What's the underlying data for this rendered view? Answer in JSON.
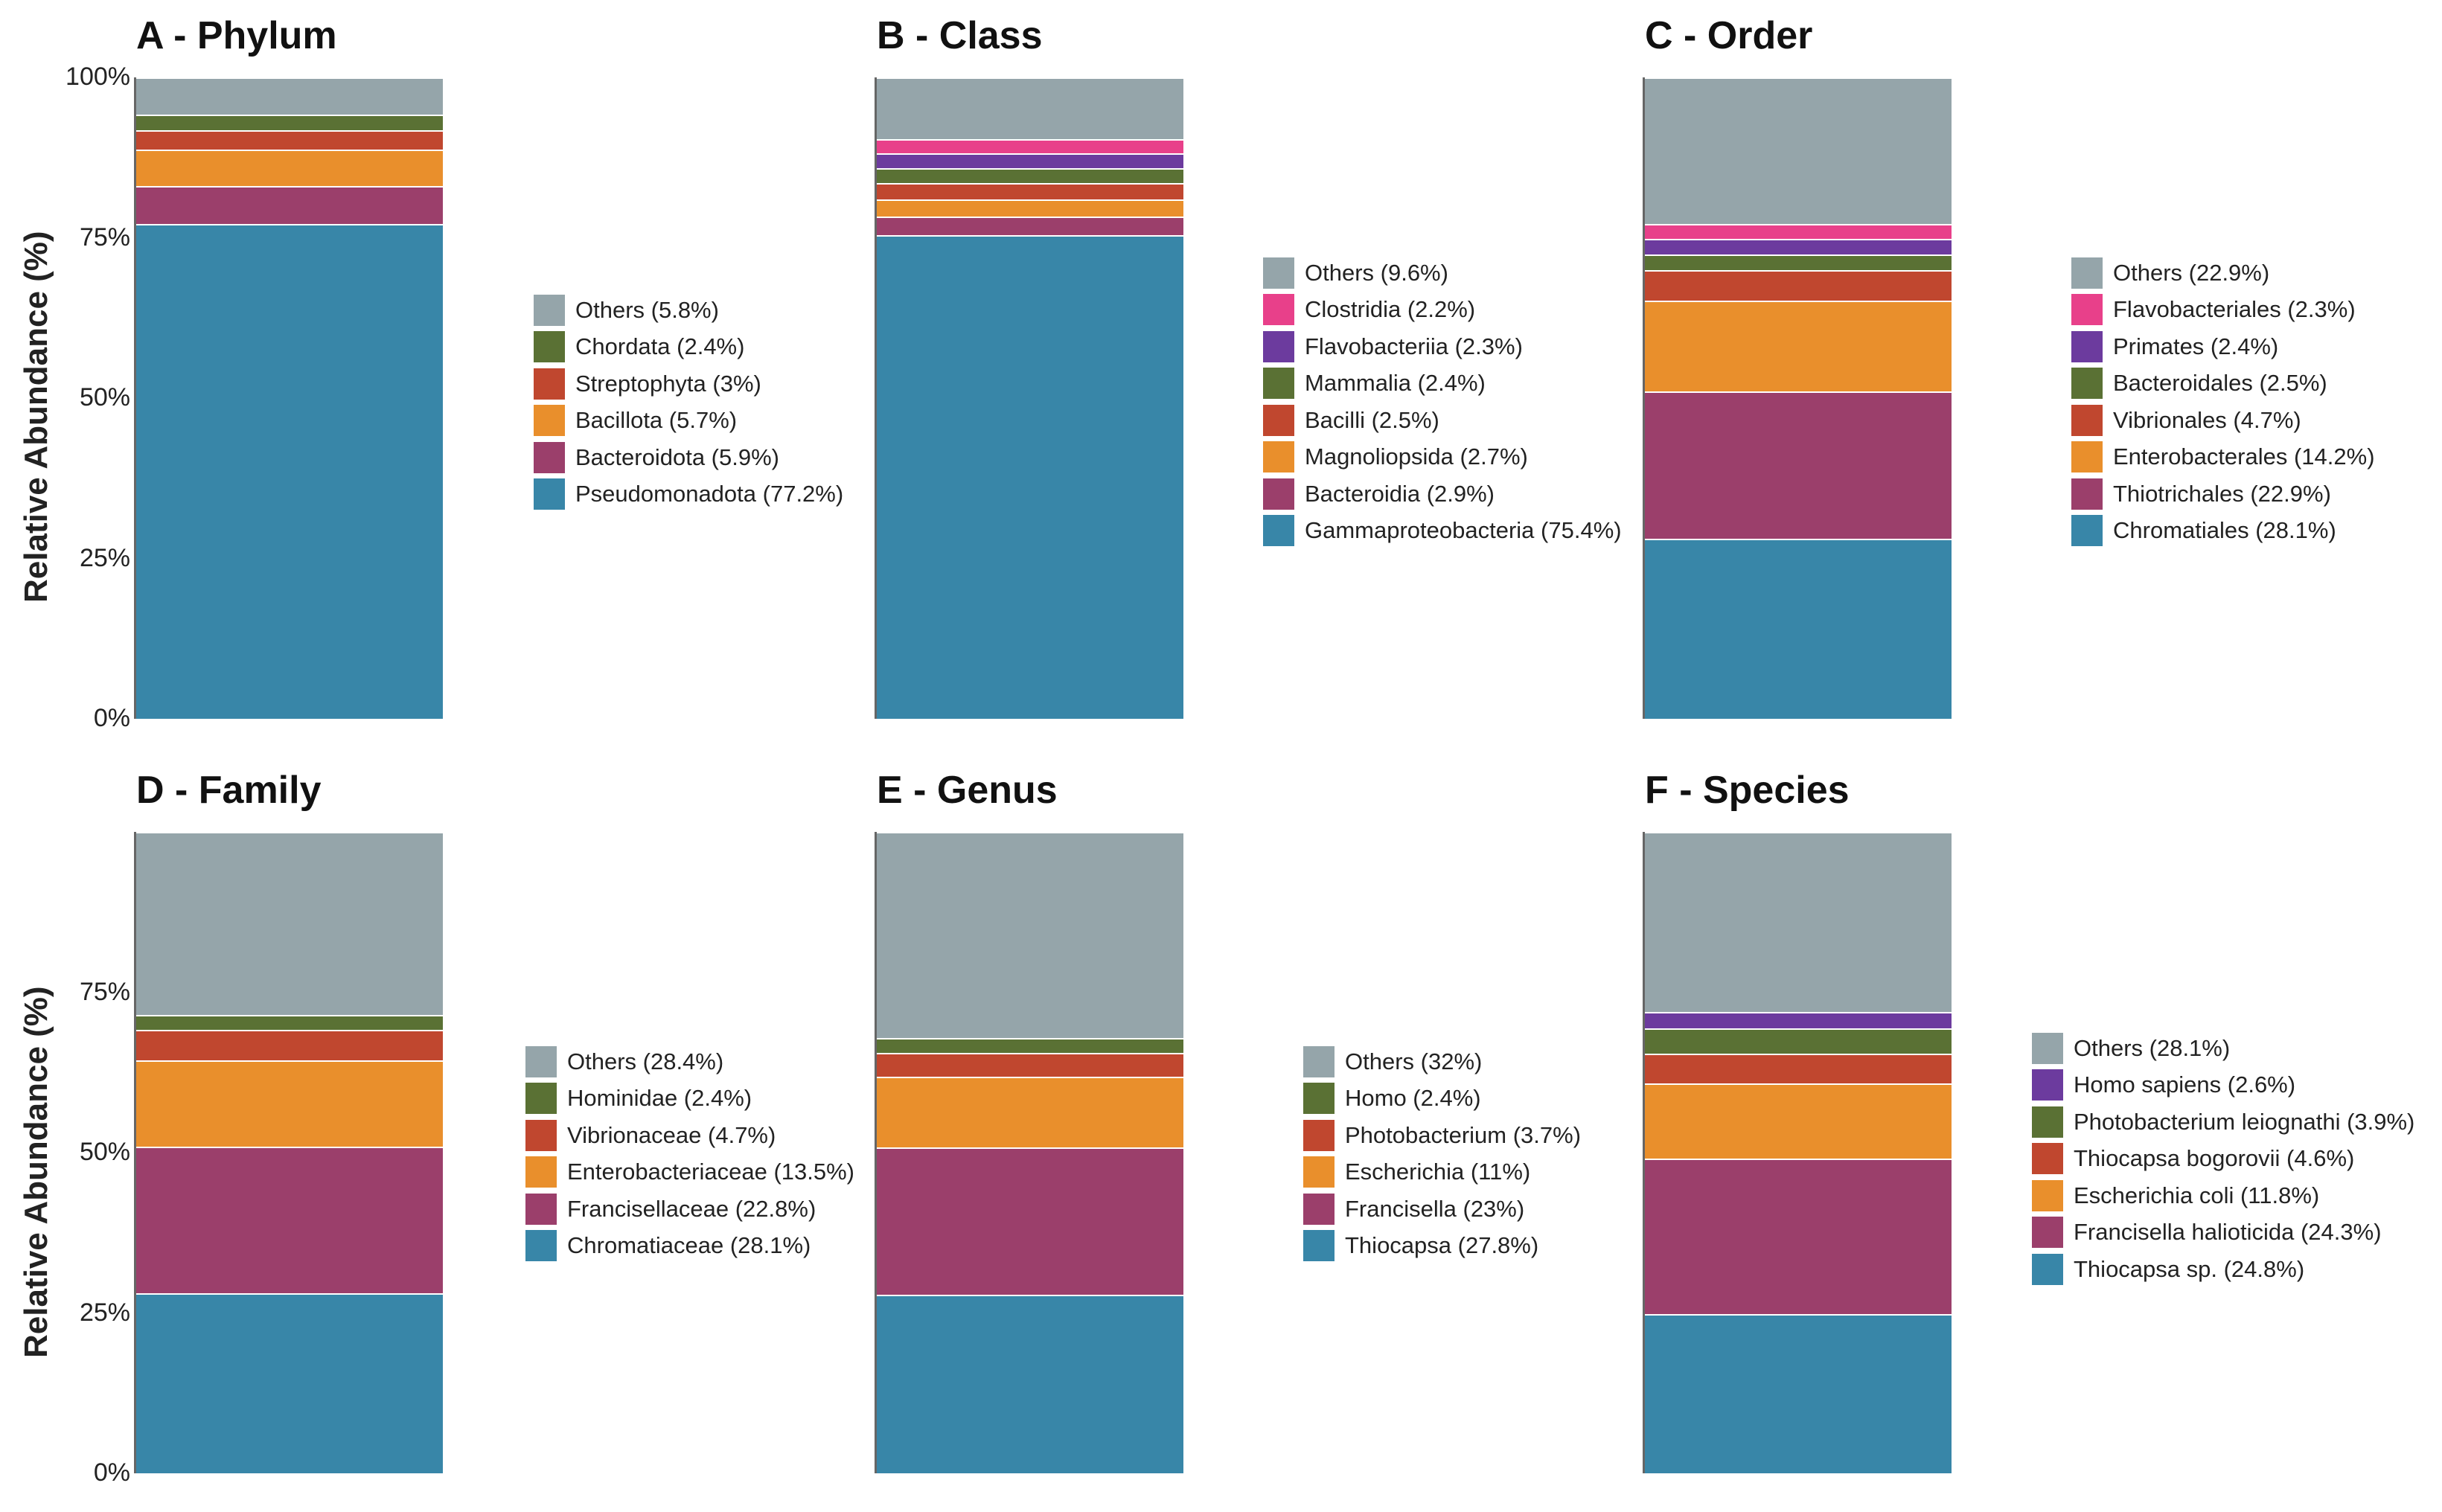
{
  "y_axis_label": "Relative Abundance (%)",
  "colors": {
    "Others": "#95a5aa",
    "pink": "#e8408a",
    "purple": "#6c3b9e",
    "green": "#5a7134",
    "red": "#c0472f",
    "orange": "#e98f2c",
    "magenta": "#9b3f6b",
    "blue": "#3886a8"
  },
  "chart_data": [
    {
      "type": "bar",
      "stacked": true,
      "title": "A - Phylum",
      "ylabel": "Relative Abundance (%)",
      "y_ticks": [
        "0%",
        "25%",
        "50%",
        "75%",
        "100%"
      ],
      "ylim": [
        0,
        100
      ],
      "series": [
        {
          "name": "Pseudomonadota (77.2%)",
          "value": 77.2,
          "color": "#3886a8"
        },
        {
          "name": "Bacteroidota (5.9%)",
          "value": 5.9,
          "color": "#9b3f6b"
        },
        {
          "name": "Bacillota (5.7%)",
          "value": 5.7,
          "color": "#e98f2c"
        },
        {
          "name": "Streptophyta (3%)",
          "value": 3.0,
          "color": "#c0472f"
        },
        {
          "name": "Chordata (2.4%)",
          "value": 2.4,
          "color": "#5a7134"
        },
        {
          "name": "Others (5.8%)",
          "value": 5.8,
          "color": "#95a5aa"
        }
      ]
    },
    {
      "type": "bar",
      "stacked": true,
      "title": "B - Class",
      "ylim": [
        0,
        100
      ],
      "series": [
        {
          "name": "Gammaproteobacteria (75.4%)",
          "value": 75.4,
          "color": "#3886a8"
        },
        {
          "name": "Bacteroidia (2.9%)",
          "value": 2.9,
          "color": "#9b3f6b"
        },
        {
          "name": "Magnoliopsida (2.7%)",
          "value": 2.7,
          "color": "#e98f2c"
        },
        {
          "name": "Bacilli (2.5%)",
          "value": 2.5,
          "color": "#c0472f"
        },
        {
          "name": "Mammalia (2.4%)",
          "value": 2.4,
          "color": "#5a7134"
        },
        {
          "name": "Flavobacteriia (2.3%)",
          "value": 2.3,
          "color": "#6c3b9e"
        },
        {
          "name": "Clostridia (2.2%)",
          "value": 2.2,
          "color": "#e8408a"
        },
        {
          "name": "Others (9.6%)",
          "value": 9.6,
          "color": "#95a5aa"
        }
      ]
    },
    {
      "type": "bar",
      "stacked": true,
      "title": "C - Order",
      "ylim": [
        0,
        100
      ],
      "series": [
        {
          "name": "Chromatiales (28.1%)",
          "value": 28.1,
          "color": "#3886a8"
        },
        {
          "name": "Thiotrichales (22.9%)",
          "value": 22.9,
          "color": "#9b3f6b"
        },
        {
          "name": "Enterobacterales (14.2%)",
          "value": 14.2,
          "color": "#e98f2c"
        },
        {
          "name": "Vibrionales (4.7%)",
          "value": 4.7,
          "color": "#c0472f"
        },
        {
          "name": "Bacteroidales (2.5%)",
          "value": 2.5,
          "color": "#5a7134"
        },
        {
          "name": "Primates (2.4%)",
          "value": 2.4,
          "color": "#6c3b9e"
        },
        {
          "name": "Flavobacteriales (2.3%)",
          "value": 2.3,
          "color": "#e8408a"
        },
        {
          "name": "Others (22.9%)",
          "value": 22.9,
          "color": "#95a5aa"
        }
      ]
    },
    {
      "type": "bar",
      "stacked": true,
      "title": "D - Family",
      "ylabel": "Relative Abundance (%)",
      "y_ticks": [
        "0%",
        "25%",
        "50%",
        "75%"
      ],
      "ylim": [
        0,
        100
      ],
      "series": [
        {
          "name": "Chromatiaceae (28.1%)",
          "value": 28.1,
          "color": "#3886a8"
        },
        {
          "name": "Francisellaceae (22.8%)",
          "value": 22.8,
          "color": "#9b3f6b"
        },
        {
          "name": "Enterobacteriaceae (13.5%)",
          "value": 13.5,
          "color": "#e98f2c"
        },
        {
          "name": "Vibrionaceae (4.7%)",
          "value": 4.7,
          "color": "#c0472f"
        },
        {
          "name": "Hominidae (2.4%)",
          "value": 2.4,
          "color": "#5a7134"
        },
        {
          "name": "Others (28.4%)",
          "value": 28.4,
          "color": "#95a5aa"
        }
      ]
    },
    {
      "type": "bar",
      "stacked": true,
      "title": "E - Genus",
      "ylim": [
        0,
        100
      ],
      "series": [
        {
          "name": "Thiocapsa (27.8%)",
          "value": 27.8,
          "color": "#3886a8"
        },
        {
          "name": "Francisella (23%)",
          "value": 23.0,
          "color": "#9b3f6b"
        },
        {
          "name": "Escherichia (11%)",
          "value": 11.0,
          "color": "#e98f2c"
        },
        {
          "name": "Photobacterium (3.7%)",
          "value": 3.7,
          "color": "#c0472f"
        },
        {
          "name": "Homo (2.4%)",
          "value": 2.4,
          "color": "#5a7134"
        },
        {
          "name": "Others (32%)",
          "value": 32.0,
          "color": "#95a5aa"
        }
      ]
    },
    {
      "type": "bar",
      "stacked": true,
      "title": "F - Species",
      "ylim": [
        0,
        100
      ],
      "series": [
        {
          "name": "Thiocapsa sp. (24.8%)",
          "value": 24.8,
          "color": "#3886a8"
        },
        {
          "name": "Francisella halioticida (24.3%)",
          "value": 24.3,
          "color": "#9b3f6b"
        },
        {
          "name": "Escherichia coli (11.8%)",
          "value": 11.8,
          "color": "#e98f2c"
        },
        {
          "name": "Thiocapsa bogorovii (4.6%)",
          "value": 4.6,
          "color": "#c0472f"
        },
        {
          "name": "Photobacterium leiognathi (3.9%)",
          "value": 3.9,
          "color": "#5a7134"
        },
        {
          "name": "Homo sapiens (2.6%)",
          "value": 2.6,
          "color": "#6c3b9e"
        },
        {
          "name": "Others (28.1%)",
          "value": 28.1,
          "color": "#95a5aa"
        }
      ]
    }
  ]
}
